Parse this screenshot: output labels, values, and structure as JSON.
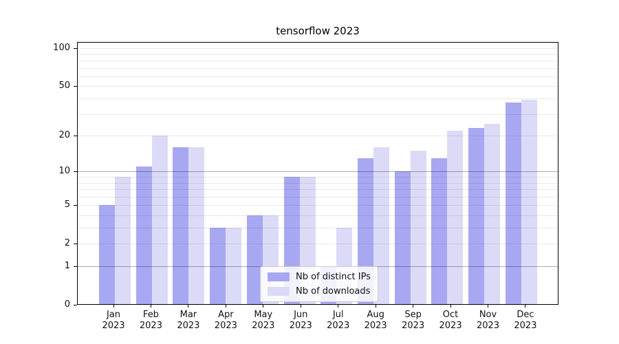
{
  "title": "tensorflow 2023",
  "chart_data": {
    "type": "bar",
    "title": "tensorflow 2023",
    "categories": [
      "Jan 2023",
      "Feb 2023",
      "Mar 2023",
      "Apr 2023",
      "May 2023",
      "Jun 2023",
      "Jul 2023",
      "Aug 2023",
      "Sep 2023",
      "Oct 2023",
      "Nov 2023",
      "Dec 2023"
    ],
    "series": [
      {
        "name": "Nb of distinct IPs",
        "color": "#a8a8f2",
        "values": [
          5,
          11,
          16,
          3,
          4,
          9,
          1,
          13,
          10,
          13,
          23,
          37
        ]
      },
      {
        "name": "Nb of downloads",
        "color": "#dbdbf8",
        "values": [
          9,
          20,
          16,
          3,
          4,
          9,
          3,
          16,
          15,
          22,
          25,
          39
        ]
      }
    ],
    "ylabel": "",
    "xlabel": "",
    "yscale": "log1p",
    "ylim": [
      0,
      110
    ],
    "ytick_values": [
      100,
      50,
      20,
      10,
      5,
      2,
      1,
      0
    ],
    "major_grid_values": [
      1,
      10
    ],
    "minor_grid_values": [
      2,
      3,
      4,
      5,
      6,
      7,
      8,
      9,
      20,
      30,
      40,
      50,
      60,
      70,
      80,
      90,
      100
    ],
    "grid": "both",
    "legend_position": "lower center"
  },
  "colors": {
    "background": "#ffffff",
    "bar_dark": "#a8a8f2",
    "bar_light": "#dbdbf8",
    "spine": "#000000",
    "major_grid": "rgba(0,0,0,0.33)",
    "minor_grid": "rgba(0,0,0,0.085)"
  }
}
